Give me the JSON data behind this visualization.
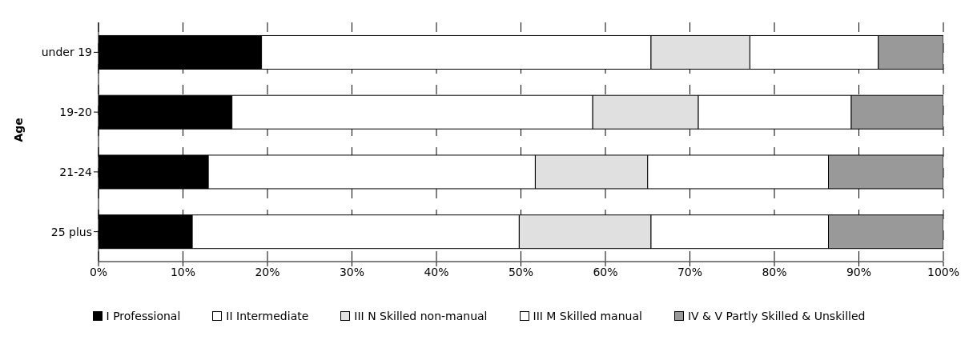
{
  "chart_data": {
    "type": "bar",
    "orientation": "horizontal",
    "stacked": true,
    "ylabel": "Age",
    "categories": [
      "under 19",
      "19-20",
      "21-24",
      "25 plus"
    ],
    "series": [
      {
        "name": "I Professional",
        "color": "#000000",
        "values": [
          19.3,
          15.8,
          13.0,
          11.1
        ]
      },
      {
        "name": "II Intermediate",
        "color": "#ffffff",
        "values": [
          46.1,
          42.7,
          38.7,
          38.7
        ]
      },
      {
        "name": "III N Skilled non-manual",
        "color": "#e0e0e0",
        "values": [
          11.7,
          12.5,
          13.3,
          15.6
        ]
      },
      {
        "name": "III M Skilled manual",
        "color": "#ffffff",
        "values": [
          15.2,
          18.1,
          21.4,
          21.0
        ]
      },
      {
        "name": "IV & V Partly Skilled & Unskilled",
        "color": "#999999",
        "values": [
          7.7,
          10.9,
          13.6,
          13.6
        ]
      }
    ],
    "xlim": [
      0,
      100
    ],
    "xticks": [
      {
        "value": 0,
        "label": "0%"
      },
      {
        "value": 10,
        "label": "10%"
      },
      {
        "value": 20,
        "label": "20%"
      },
      {
        "value": 30,
        "label": "30%"
      },
      {
        "value": 40,
        "label": "40%"
      },
      {
        "value": 50,
        "label": "50%"
      },
      {
        "value": 60,
        "label": "60%"
      },
      {
        "value": 70,
        "label": "70%"
      },
      {
        "value": 80,
        "label": "80%"
      },
      {
        "value": 90,
        "label": "90%"
      },
      {
        "value": 100,
        "label": "100%"
      }
    ],
    "grid": "x",
    "legend": "bottom"
  }
}
